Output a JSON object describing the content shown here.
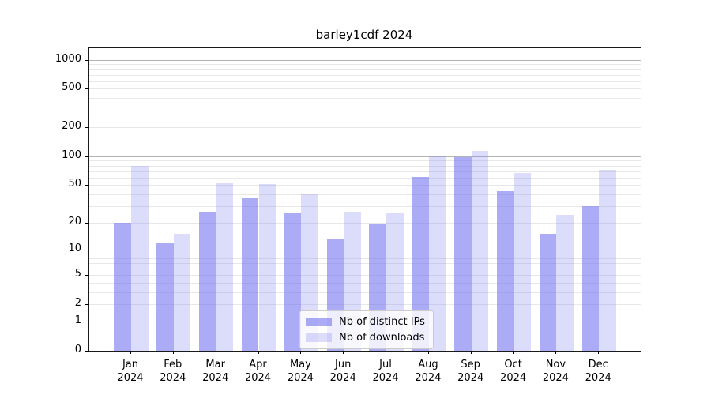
{
  "chart_data": {
    "type": "bar",
    "title": "barley1cdf 2024",
    "categories": [
      "Jan",
      "Feb",
      "Mar",
      "Apr",
      "May",
      "Jun",
      "Jul",
      "Aug",
      "Sep",
      "Oct",
      "Nov",
      "Dec"
    ],
    "year_label": "2024",
    "series": [
      {
        "name": "Nb of distinct IPs",
        "color": "rgba(120,120,240,0.62)",
        "values": [
          20,
          12,
          26,
          37,
          25,
          13,
          19,
          61,
          98,
          43,
          15,
          30
        ]
      },
      {
        "name": "Nb of downloads",
        "color": "rgba(120,120,240,0.26)",
        "values": [
          79,
          15,
          52,
          51,
          40,
          26,
          25,
          100,
          115,
          67,
          24,
          72
        ]
      }
    ],
    "yscale": "log10(1+x)",
    "y_axis": {
      "tick_labels": [
        0,
        1,
        2,
        5,
        10,
        20,
        50,
        100,
        200,
        500,
        1000
      ],
      "major_gridlines": [
        1,
        10,
        100,
        1000
      ],
      "minor_gridlines": [
        2,
        3,
        4,
        5,
        6,
        7,
        8,
        9,
        20,
        30,
        40,
        50,
        60,
        70,
        80,
        90,
        200,
        300,
        400,
        500,
        600,
        700,
        800,
        900
      ],
      "max_value": 1314,
      "min_value": 0
    },
    "legend_position": "lower center",
    "grid": true
  },
  "colors": {
    "major_grid": "#b3b3b3",
    "minor_grid": "#e8e8e8",
    "axis_spine": "#1a1a1a",
    "tick": "#000000",
    "legend_border": "#cccccc",
    "legend_background": "rgba(255,255,255,0.8)"
  }
}
